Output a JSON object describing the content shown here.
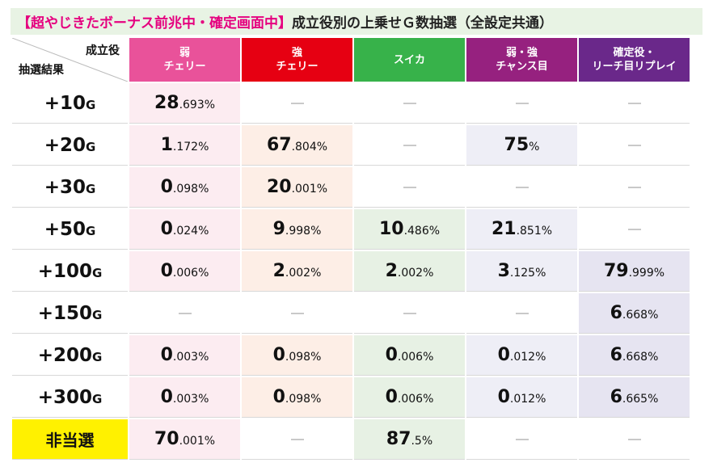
{
  "title": {
    "highlight": "【超やじきたボーナス前兆中・確定画面中】",
    "rest": "成立役別の上乗せＧ数抽選（全設定共通）"
  },
  "corner": {
    "top": "成立役",
    "bottom": "抽選結果"
  },
  "columns": [
    {
      "line1": "弱",
      "line2": "チェリー",
      "color": "#e9529a"
    },
    {
      "line1": "強",
      "line2": "チェリー",
      "color": "#e60012"
    },
    {
      "line1": "スイカ",
      "line2": "",
      "color": "#37b24a"
    },
    {
      "line1": "弱・強",
      "line2": "チャンス目",
      "color": "#96217f"
    },
    {
      "line1": "確定役・",
      "line2": "リーチ目リプレイ",
      "color": "#6a288a"
    }
  ],
  "rows": [
    {
      "label": "+10",
      "unit": "G",
      "cells": [
        {
          "i": "28",
          "d": ".693%"
        },
        null,
        null,
        null,
        null
      ]
    },
    {
      "label": "+20",
      "unit": "G",
      "cells": [
        {
          "i": "1",
          "d": ".172%"
        },
        {
          "i": "67",
          "d": ".804%"
        },
        null,
        {
          "i": "75",
          "d": "%"
        },
        null
      ]
    },
    {
      "label": "+30",
      "unit": "G",
      "cells": [
        {
          "i": "0",
          "d": ".098%"
        },
        {
          "i": "20",
          "d": ".001%"
        },
        null,
        null,
        null
      ]
    },
    {
      "label": "+50",
      "unit": "G",
      "cells": [
        {
          "i": "0",
          "d": ".024%"
        },
        {
          "i": "9",
          "d": ".998%"
        },
        {
          "i": "10",
          "d": ".486%"
        },
        {
          "i": "21",
          "d": ".851%"
        },
        null
      ]
    },
    {
      "label": "+100",
      "unit": "G",
      "cells": [
        {
          "i": "0",
          "d": ".006%"
        },
        {
          "i": "2",
          "d": ".002%"
        },
        {
          "i": "2",
          "d": ".002%"
        },
        {
          "i": "3",
          "d": ".125%"
        },
        {
          "i": "79",
          "d": ".999%"
        }
      ]
    },
    {
      "label": "+150",
      "unit": "G",
      "cells": [
        null,
        null,
        null,
        null,
        {
          "i": "6",
          "d": ".668%"
        }
      ]
    },
    {
      "label": "+200",
      "unit": "G",
      "cells": [
        {
          "i": "0",
          "d": ".003%"
        },
        {
          "i": "0",
          "d": ".098%"
        },
        {
          "i": "0",
          "d": ".006%"
        },
        {
          "i": "0",
          "d": ".012%"
        },
        {
          "i": "6",
          "d": ".668%"
        }
      ]
    },
    {
      "label": "+300",
      "unit": "G",
      "cells": [
        {
          "i": "0",
          "d": ".003%"
        },
        {
          "i": "0",
          "d": ".098%"
        },
        {
          "i": "0",
          "d": ".006%"
        },
        {
          "i": "0",
          "d": ".012%"
        },
        {
          "i": "6",
          "d": ".665%"
        }
      ]
    },
    {
      "label": "非当選",
      "unit": "",
      "special": true,
      "cells": [
        {
          "i": "70",
          "d": ".001%"
        },
        null,
        {
          "i": "87",
          "d": ".5%"
        },
        null,
        null
      ]
    }
  ]
}
